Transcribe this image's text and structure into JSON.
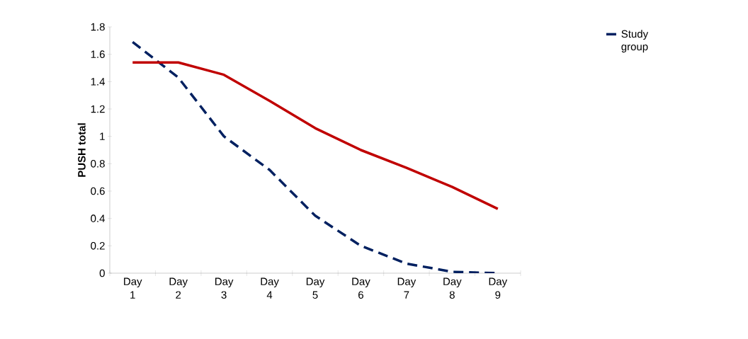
{
  "chart_data": {
    "type": "line",
    "ylabel": "PUSH total",
    "categories": [
      "Day 1",
      "Day 2",
      "Day 3",
      "Day 4",
      "Day 5",
      "Day 6",
      "Day 7",
      "Day 8",
      "Day 9"
    ],
    "series": [
      {
        "name": "Study group",
        "color": "#002060",
        "line_style": "dashed",
        "values": [
          1.69,
          1.43,
          1.0,
          0.755,
          0.42,
          0.2,
          0.07,
          0.01,
          0
        ]
      },
      {
        "color": "#c00000",
        "line_style": "solid",
        "values": [
          1.54,
          1.54,
          1.45,
          1.26,
          1.06,
          0.9,
          0.77,
          0.63,
          0.47
        ]
      }
    ],
    "ylim": [
      0,
      1.8
    ],
    "yticks": [
      0,
      0.2,
      0.4,
      0.6,
      0.8,
      1,
      1.2,
      1.4,
      1.6,
      1.8
    ],
    "grid": false,
    "legend": "top right",
    "marker": "none"
  }
}
